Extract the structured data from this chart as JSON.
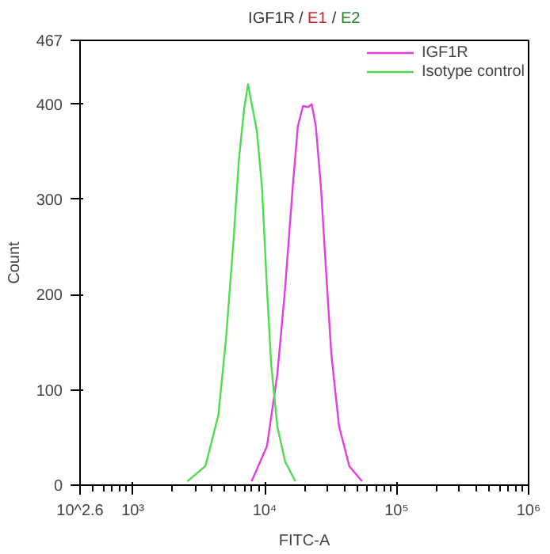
{
  "chart_data": {
    "type": "line",
    "title": "IGF1R / E1 / E2",
    "xlabel": "FITC-A",
    "ylabel": "Count",
    "log": "x",
    "xlim": [
      398.1,
      1000000
    ],
    "ylim": [
      0,
      467
    ],
    "xticks": [
      {
        "value": 398.1,
        "label": "10^2.6"
      },
      {
        "value": 1000,
        "label": "10³"
      },
      {
        "value": 10000,
        "label": "10⁴"
      },
      {
        "value": 100000,
        "label": "10⁵"
      },
      {
        "value": 1000000,
        "label": "10⁶"
      }
    ],
    "yticks": [
      0,
      100,
      200,
      300,
      400,
      467
    ],
    "grid": false,
    "legend": "top right",
    "series": [
      {
        "name": "IGF1R",
        "color": "#e040e0",
        "x": [
          7943,
          10399,
          12445,
          14256,
          16293,
          17824,
          19498,
          21330,
          22699,
          24378,
          26669,
          29242,
          31989,
          36559,
          43752,
          54702
        ],
        "values": [
          4,
          41,
          116,
          206,
          313,
          377,
          398,
          397,
          400,
          377,
          313,
          222,
          137,
          62,
          20,
          4
        ]
      },
      {
        "name": "Isotype control",
        "color": "#50dc50",
        "x": [
          2594,
          3548,
          4446,
          5082,
          5821,
          6353,
          6950,
          7464,
          8710,
          9528,
          10399,
          11194,
          12445,
          14256,
          17061
        ],
        "values": [
          4,
          20,
          73,
          153,
          260,
          340,
          393,
          421,
          372,
          313,
          206,
          126,
          62,
          25,
          4
        ]
      }
    ]
  }
}
